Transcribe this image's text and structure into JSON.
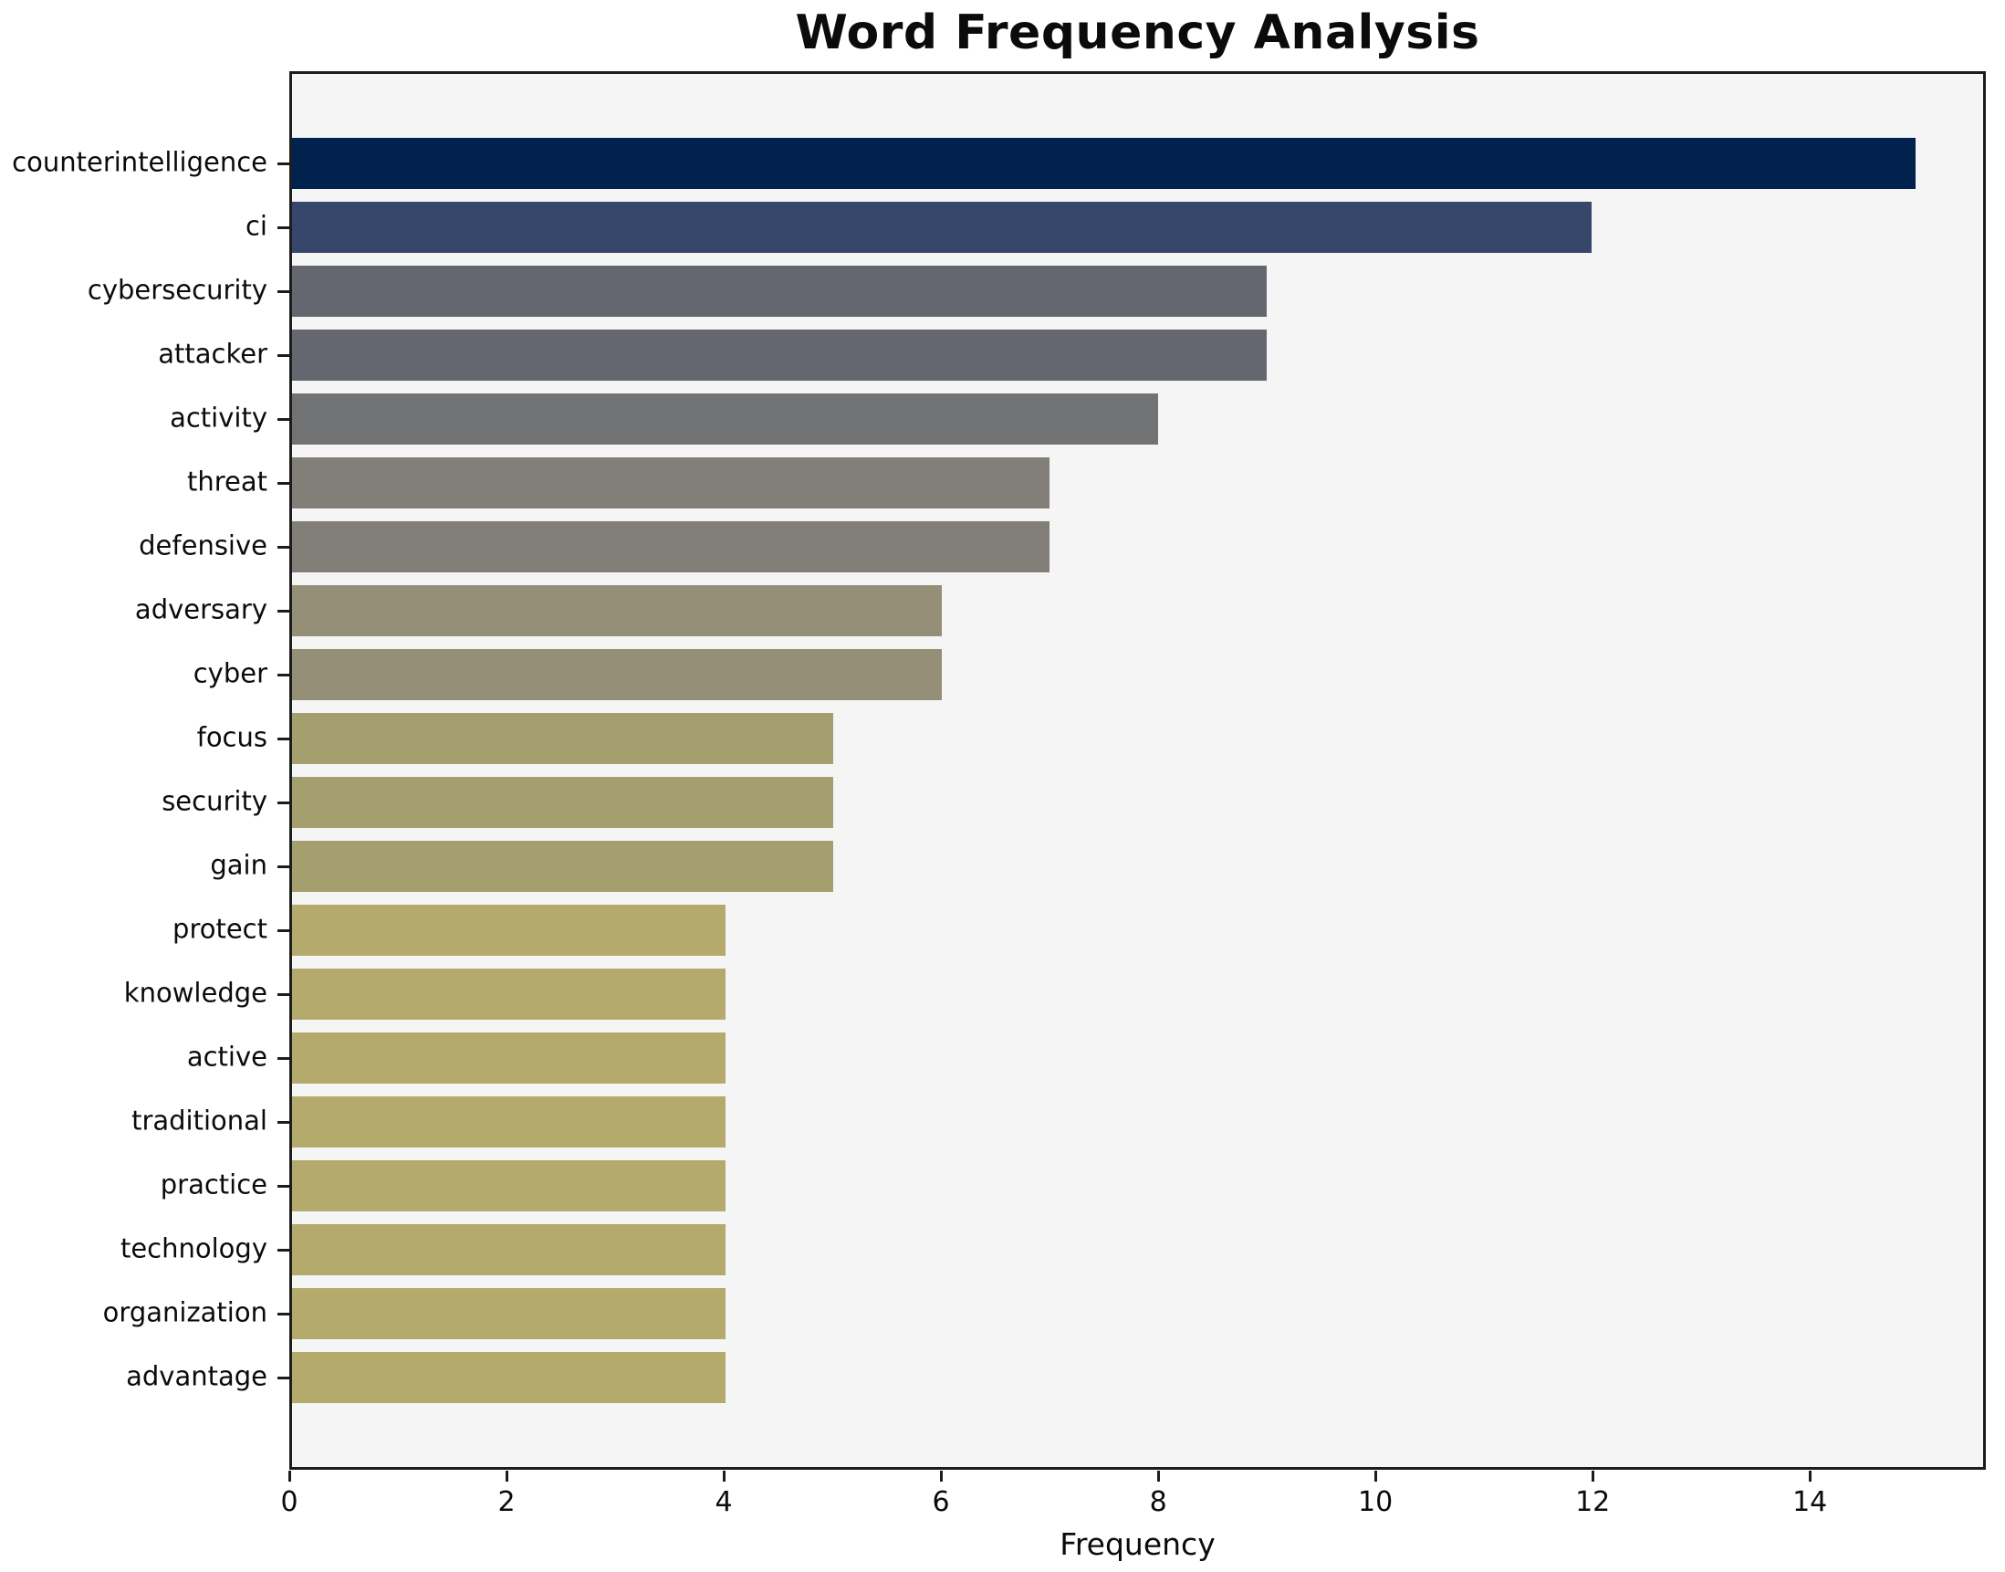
{
  "chart_data": {
    "type": "bar",
    "orientation": "horizontal",
    "title": "Word Frequency Analysis",
    "xlabel": "Frequency",
    "ylabel": "",
    "categories": [
      "counterintelligence",
      "ci",
      "cybersecurity",
      "attacker",
      "activity",
      "threat",
      "defensive",
      "adversary",
      "cyber",
      "focus",
      "security",
      "gain",
      "protect",
      "knowledge",
      "active",
      "traditional",
      "practice",
      "technology",
      "organization",
      "advantage"
    ],
    "values": [
      15,
      12,
      9,
      9,
      8,
      7,
      7,
      6,
      6,
      5,
      5,
      5,
      4,
      4,
      4,
      4,
      4,
      4,
      4,
      4
    ],
    "bar_colors": [
      "#02224e",
      "#36476b",
      "#64676f",
      "#64676f",
      "#717273",
      "#827f78",
      "#827f78",
      "#958f77",
      "#958f77",
      "#a59e6e",
      "#a59e6e",
      "#a59e6e",
      "#b4aa6c",
      "#b4aa6c",
      "#b4aa6c",
      "#b4aa6c",
      "#b4aa6c",
      "#b4aa6c",
      "#b4aa6c",
      "#b4aa6c"
    ],
    "x_ticks": [
      0,
      2,
      4,
      6,
      8,
      10,
      12,
      14
    ],
    "xlim": [
      0,
      15.62
    ],
    "grid": false,
    "legend": false,
    "plot_background": "#f6f5f6",
    "spine_color": "#1c1c1c"
  }
}
